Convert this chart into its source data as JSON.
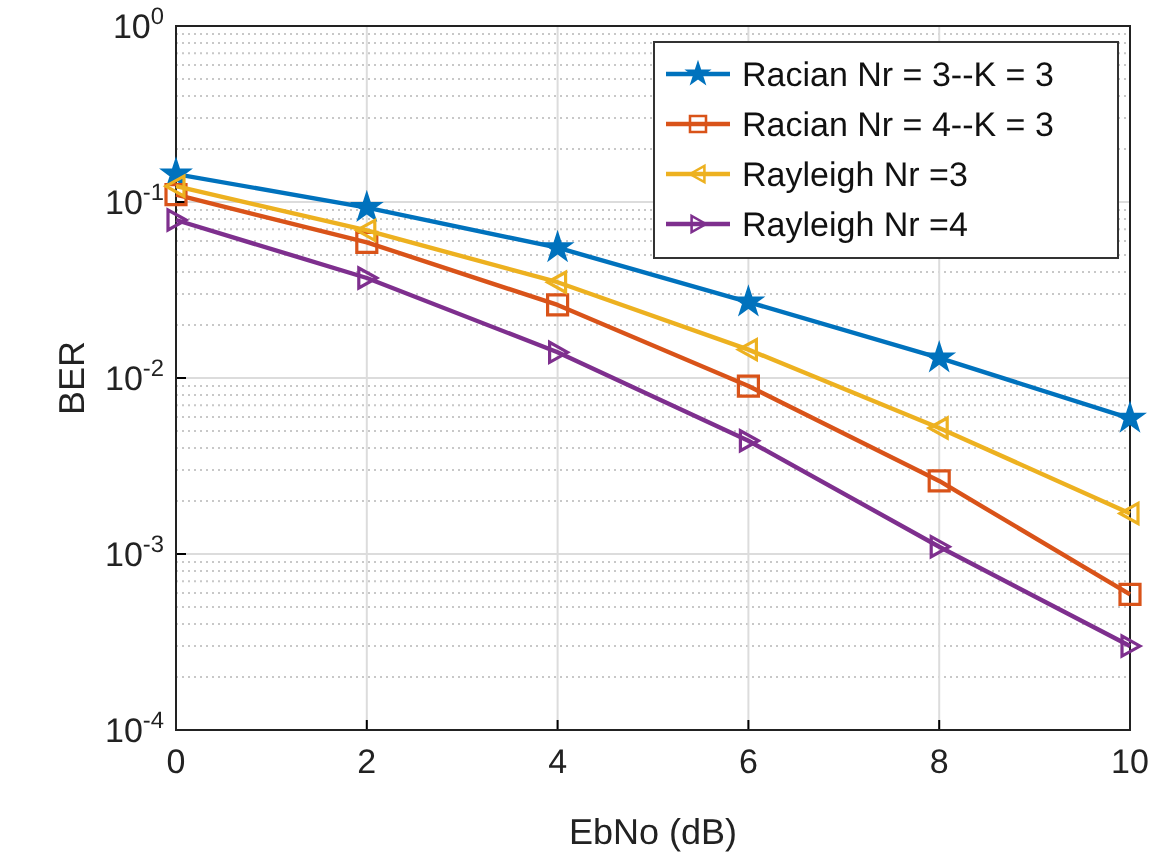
{
  "chart_data": {
    "type": "line",
    "xlabel": "EbNo (dB)",
    "ylabel": "BER",
    "x": [
      0,
      2,
      4,
      6,
      8,
      10
    ],
    "series": [
      {
        "name": "Racian Nr = 3--K = 3",
        "color": "#0072bd",
        "marker": "star",
        "values": [
          0.144,
          0.093,
          0.055,
          0.027,
          0.013,
          0.0059
        ]
      },
      {
        "name": "Racian Nr = 4--K = 3",
        "color": "#d95319",
        "marker": "square",
        "values": [
          0.11,
          0.059,
          0.026,
          0.009,
          0.0026,
          0.00059
        ]
      },
      {
        "name": "Rayleigh Nr =3",
        "color": "#edb120",
        "marker": "triangle",
        "values": [
          0.123,
          0.069,
          0.035,
          0.0145,
          0.0052,
          0.0017
        ]
      },
      {
        "name": "Rayleigh Nr =4",
        "color": "#7e2f8e",
        "marker": "triangle",
        "values": [
          0.079,
          0.037,
          0.014,
          0.0044,
          0.0011,
          0.0003
        ]
      }
    ],
    "xlim": [
      0,
      10
    ],
    "xticks": [
      0,
      2,
      4,
      6,
      8,
      10
    ],
    "ylim": [
      0.0001,
      1
    ],
    "yticks": [
      {
        "value": 0.0001,
        "label": "10$^{-4}$"
      },
      {
        "value": 0.001,
        "label": "10$^{-3}$"
      },
      {
        "value": 0.01,
        "label": "10$^{-2}$"
      },
      {
        "value": 0.1,
        "label": "10$^{-1}$"
      },
      {
        "value": 1,
        "label": "10$^{0}$"
      }
    ],
    "log": "y",
    "grid": true,
    "legend": "top right",
    "line_style": "solid"
  }
}
